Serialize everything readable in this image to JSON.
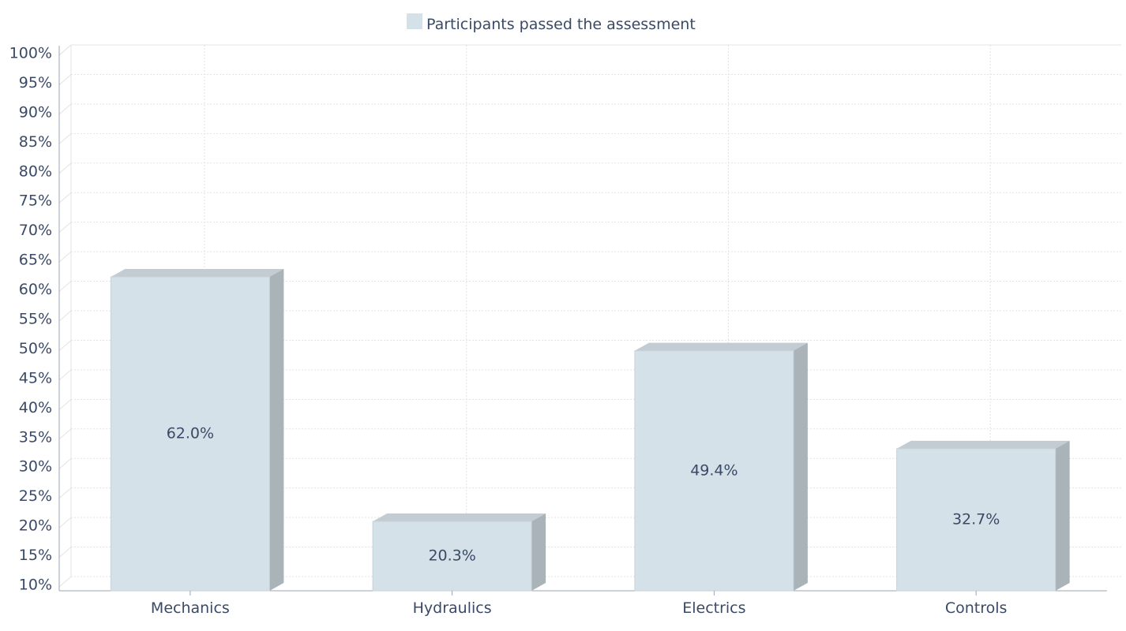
{
  "chart_data": {
    "type": "bar",
    "legend": {
      "label": "Participants passed the assessment",
      "placement": "top-center"
    },
    "categories": [
      "Mechanics",
      "Hydraulics",
      "Electrics",
      "Controls"
    ],
    "series": [
      {
        "name": "Participants passed the assessment",
        "values": [
          62.0,
          20.3,
          49.4,
          32.7
        ],
        "data_labels": [
          "62.0%",
          "20.3%",
          "49.4%",
          "32.7%"
        ]
      }
    ],
    "ylim": [
      10,
      100
    ],
    "yticks": [
      100,
      95,
      90,
      85,
      80,
      75,
      70,
      65,
      60,
      55,
      50,
      45,
      40,
      35,
      30,
      25,
      20,
      15,
      10
    ],
    "ytick_labels": [
      "100%",
      "95%",
      "90%",
      "85%",
      "80%",
      "75%",
      "70%",
      "65%",
      "60%",
      "55%",
      "50%",
      "45%",
      "40%",
      "35%",
      "30%",
      "25%",
      "20%",
      "15%",
      "10%"
    ],
    "grid": true,
    "style": "3d",
    "colors": {
      "front": "#d4e1e8",
      "top": "#c3ccd2",
      "side": "#a9b3b8",
      "text": "#3a4a66",
      "grid": "#e3e3e3"
    }
  }
}
